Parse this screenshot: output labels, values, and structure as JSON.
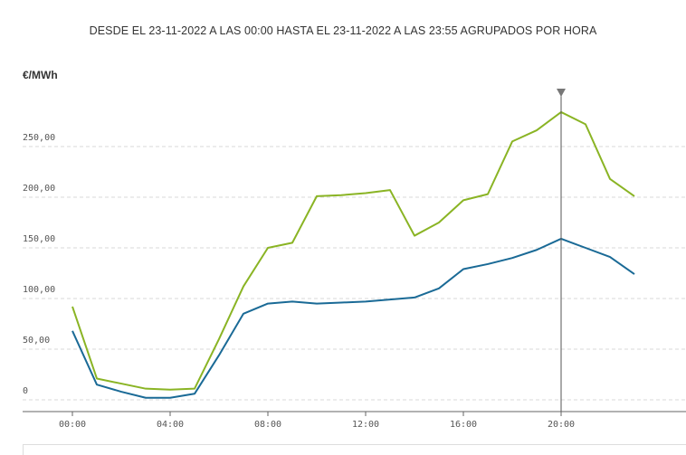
{
  "title": "DESDE EL 23-11-2022 A LAS 00:00 HASTA EL 23-11-2022 A LAS 23:55 AGRUPADOS POR HORA",
  "colors": {
    "green": "#8ab424",
    "blue": "#1a6a96",
    "grid": "#d9d9d9",
    "cursor": "#555555"
  },
  "chart_data": {
    "type": "line",
    "ylabel": "€/MWh",
    "ylim": [
      0,
      280
    ],
    "yticks": [
      0,
      50,
      100,
      150,
      200,
      250
    ],
    "ytick_labels": [
      "0",
      "50,00",
      "100,00",
      "150,00",
      "200,00",
      "250,00"
    ],
    "xticks": [
      0,
      4,
      8,
      12,
      16,
      20
    ],
    "xtick_labels": [
      "00:00",
      "04:00",
      "08:00",
      "12:00",
      "16:00",
      "20:00"
    ],
    "xlim": [
      -2,
      25
    ],
    "cursor_x": 20,
    "grid": true,
    "x": [
      0,
      1,
      2,
      3,
      4,
      5,
      6,
      7,
      8,
      9,
      10,
      11,
      12,
      13,
      14,
      15,
      16,
      17,
      18,
      19,
      20,
      21,
      22,
      23
    ],
    "series": [
      {
        "color": "#8ab424",
        "values": [
          92,
          21,
          16,
          11,
          10,
          11,
          60,
          112,
          150,
          155,
          201,
          202,
          204,
          207,
          162,
          175,
          197,
          203,
          255,
          266,
          284,
          272,
          218,
          201
        ]
      },
      {
        "color": "#1a6a96",
        "values": [
          68,
          15,
          8,
          2,
          2,
          6,
          44,
          85,
          95,
          97,
          95,
          96,
          97,
          99,
          101,
          110,
          129,
          134,
          140,
          148,
          159,
          150,
          141,
          124
        ]
      }
    ]
  }
}
